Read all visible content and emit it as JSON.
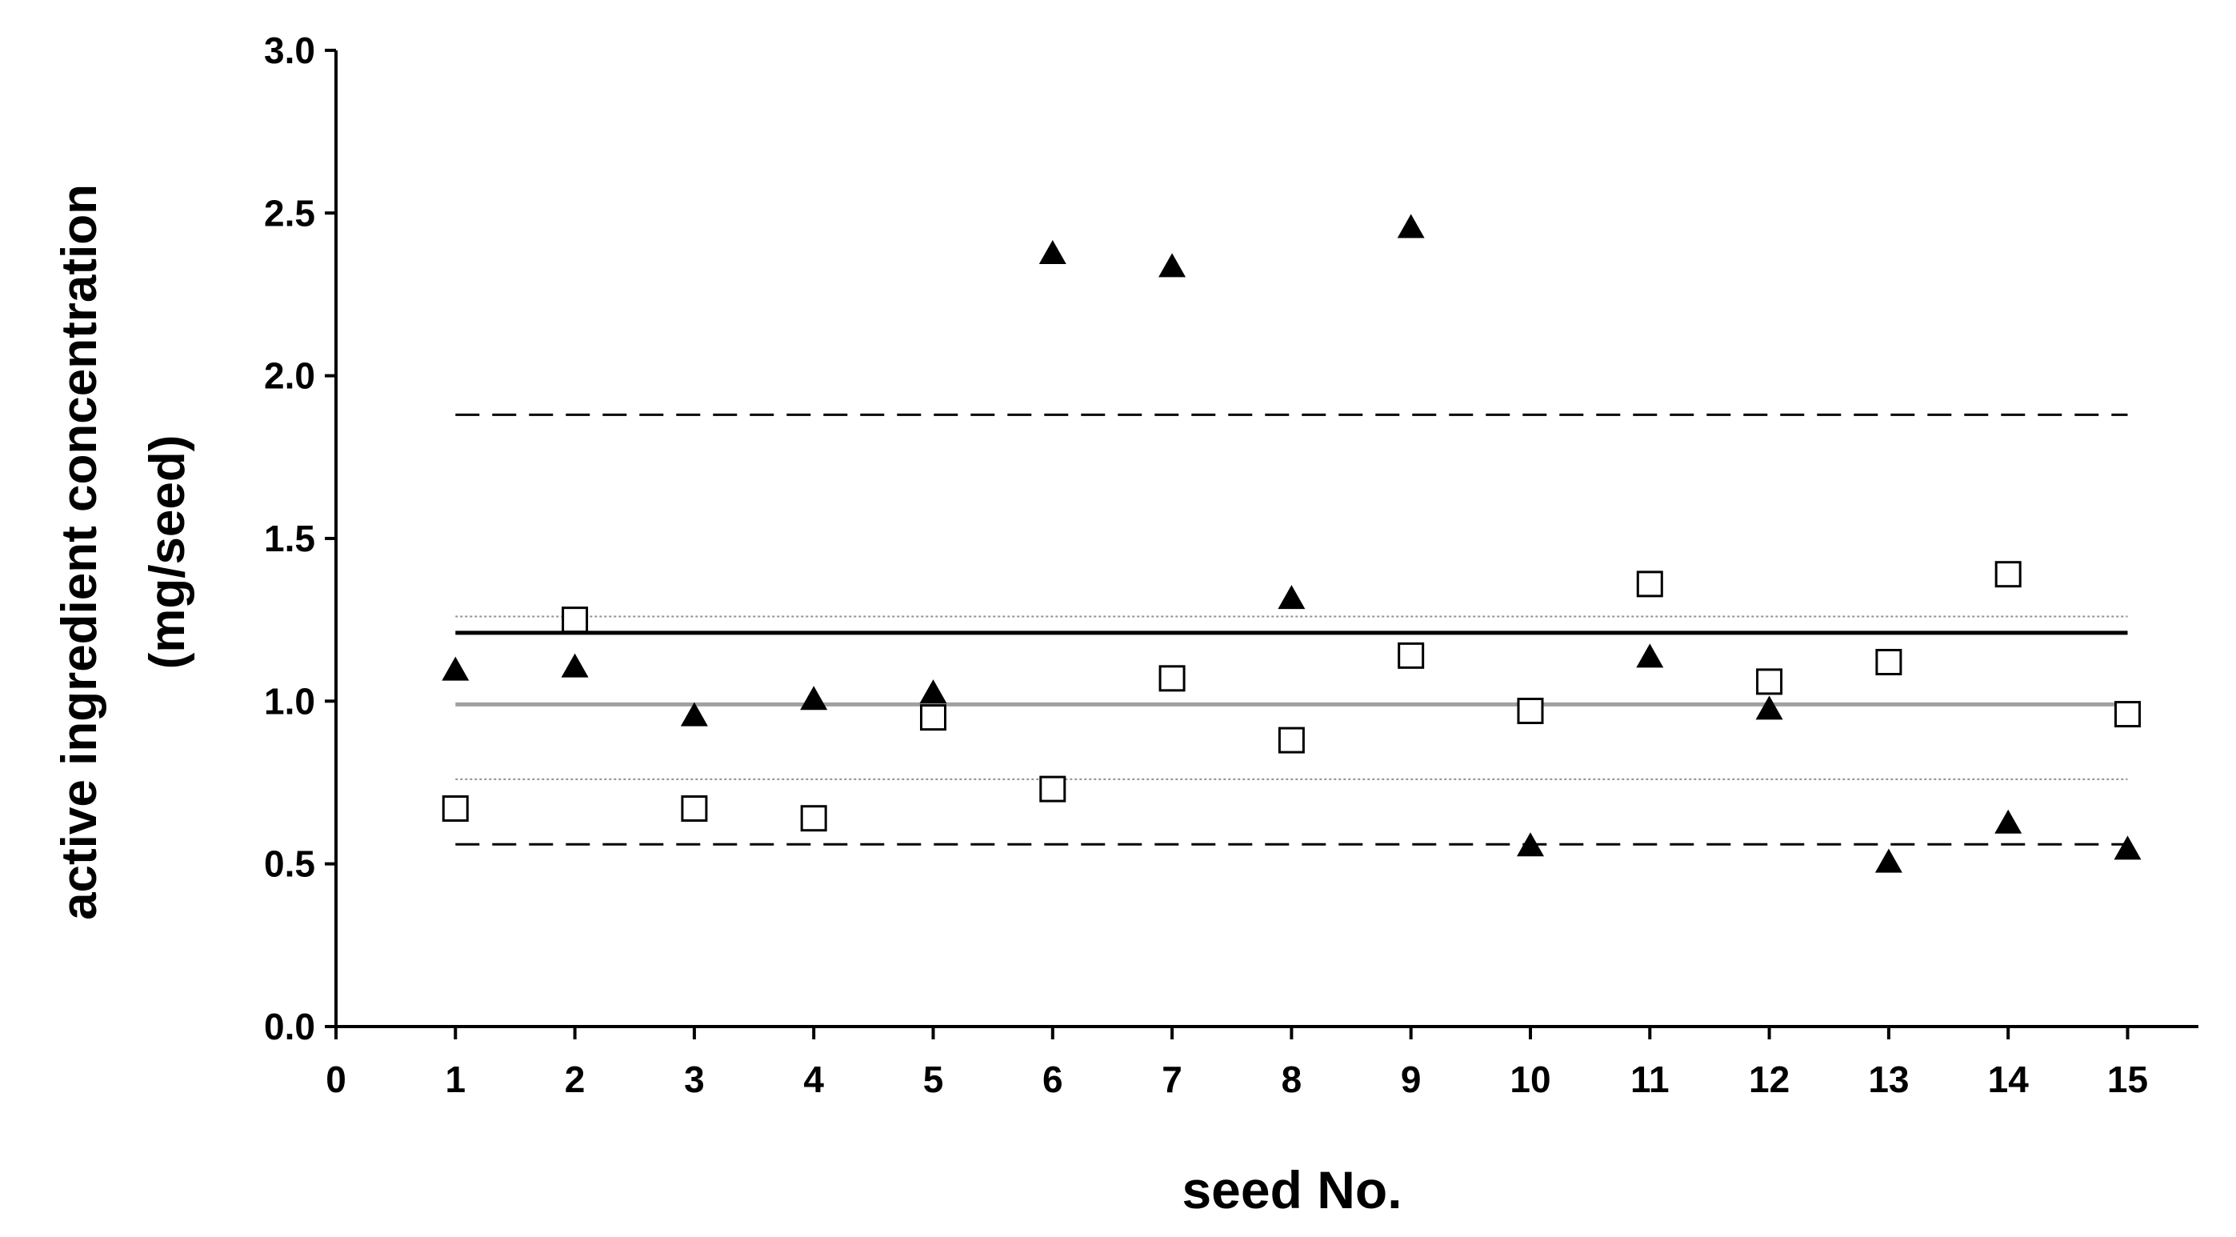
{
  "chart_data": {
    "type": "scatter",
    "xlabel": "seed No.",
    "ylabel_line1": "active ingredient concentration",
    "ylabel_line2": "(mg/seed)",
    "xlim": [
      0,
      15.7
    ],
    "ylim": [
      0,
      3.0
    ],
    "x_ticks": [
      "0",
      "1",
      "2",
      "3",
      "4",
      "5",
      "6",
      "7",
      "8",
      "9",
      "10",
      "11",
      "12",
      "13",
      "14",
      "15"
    ],
    "y_ticks": [
      "0.0",
      "0.5",
      "1.0",
      "1.5",
      "2.0",
      "2.5",
      "3.0"
    ],
    "grid": false,
    "legend": "none",
    "series": [
      {
        "marker": "filled-triangle",
        "color": "#000000",
        "x": [
          1,
          2,
          3,
          4,
          5,
          6,
          7,
          8,
          9,
          10,
          11,
          12,
          13,
          14,
          15
        ],
        "y": [
          1.1,
          1.11,
          0.96,
          1.01,
          1.03,
          2.38,
          2.34,
          1.32,
          2.46,
          0.56,
          1.14,
          0.98,
          0.51,
          0.63,
          0.55
        ]
      },
      {
        "marker": "open-square",
        "color": "#000000",
        "x": [
          1,
          2,
          3,
          4,
          5,
          6,
          7,
          8,
          9,
          10,
          11,
          12,
          13,
          14,
          15
        ],
        "y": [
          0.67,
          1.25,
          0.67,
          0.64,
          0.95,
          0.73,
          1.07,
          0.88,
          1.14,
          0.97,
          1.36,
          1.06,
          1.12,
          1.39,
          0.96
        ]
      }
    ],
    "reference_lines": [
      {
        "style": "solid-black",
        "color": "#000000",
        "y": 1.21,
        "x_from": 1,
        "x_to": 15
      },
      {
        "style": "solid-gray",
        "color": "#a0a0a0",
        "y": 0.99,
        "x_from": 1,
        "x_to": 15
      },
      {
        "style": "dashed-black",
        "color": "#000000",
        "y": 1.88,
        "x_from": 1,
        "x_to": 15
      },
      {
        "style": "dashed-black",
        "color": "#000000",
        "y": 0.56,
        "x_from": 1,
        "x_to": 15
      },
      {
        "style": "dotted-gray",
        "color": "#909090",
        "y": 1.26,
        "x_from": 1,
        "x_to": 15
      },
      {
        "style": "dotted-gray",
        "color": "#909090",
        "y": 0.76,
        "x_from": 1,
        "x_to": 15
      }
    ]
  }
}
